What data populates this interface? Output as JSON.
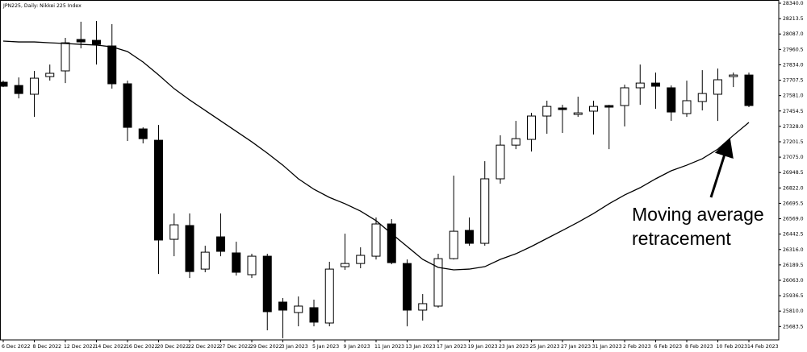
{
  "chart_data": {
    "type": "candlestick",
    "title": "JPN225, Daily: Nikkei 225 Index",
    "categories": [
      "6 Dec 2022",
      null,
      "8 Dec 2022",
      null,
      "12 Dec 2022",
      null,
      "14 Dec 2022",
      null,
      "16 Dec 2022",
      null,
      "20 Dec 2022",
      null,
      "22 Dec 2022",
      null,
      "27 Dec 2022",
      null,
      "29 Dec 2022",
      null,
      "3 Jan 2023",
      null,
      "5 Jan 2023",
      null,
      "9 Jan 2023",
      null,
      "11 Jan 2023",
      null,
      "13 Jan 2023",
      null,
      "17 Jan 2023",
      null,
      "19 Jan 2023",
      null,
      "23 Jan 2023",
      null,
      "25 Jan 2023",
      null,
      "27 Jan 2023",
      null,
      "31 Jan 2023",
      null,
      "2 Feb 2023",
      null,
      "6 Feb 2023",
      null,
      "8 Feb 2023",
      null,
      "10 Feb 2023",
      null,
      "14 Feb 2023"
    ],
    "open": [
      27691,
      27664,
      27592,
      27737,
      27784,
      28042,
      28035,
      27989,
      27678,
      27307,
      27214,
      26400,
      26513,
      26155,
      26420,
      26288,
      26109,
      26261,
      25884,
      25798,
      25838,
      25712,
      26175,
      26201,
      26261,
      26526,
      26201,
      25818,
      25851,
      26241,
      26473,
      26367,
      26897,
      27174,
      27221,
      27413,
      27479,
      27426,
      27453,
      27499,
      27499,
      27645,
      27684,
      27645,
      27433,
      27532,
      27592,
      27737,
      27750
    ],
    "high": [
      27704,
      27730,
      27784,
      27836,
      28055,
      28188,
      28194,
      28168,
      27704,
      27320,
      27340,
      26612,
      26612,
      26347,
      26612,
      26380,
      26281,
      26281,
      25917,
      25930,
      25904,
      26215,
      26446,
      26334,
      26579,
      26566,
      26234,
      25950,
      26281,
      26923,
      26579,
      27042,
      27254,
      27373,
      27439,
      27539,
      27505,
      27572,
      27539,
      27505,
      27671,
      27836,
      27770,
      27664,
      27704,
      27790,
      27803,
      27770,
      27770
    ],
    "low": [
      27651,
      27558,
      27406,
      27704,
      27684,
      27969,
      27836,
      27638,
      27208,
      27188,
      26115,
      26261,
      26082,
      26129,
      26261,
      26102,
      26082,
      25652,
      25586,
      25685,
      25685,
      25685,
      26149,
      26162,
      26234,
      26195,
      25685,
      25732,
      25838,
      26234,
      26347,
      26347,
      26857,
      27141,
      27121,
      27267,
      27274,
      27406,
      27261,
      27141,
      27327,
      27505,
      27472,
      27373,
      27406,
      27459,
      27373,
      27651,
      27486
    ],
    "close": [
      27658,
      27598,
      27724,
      27764,
      28015,
      28022,
      28002,
      27678,
      27320,
      27227,
      26394,
      26519,
      26135,
      26294,
      26301,
      26129,
      26261,
      25805,
      25818,
      25851,
      25719,
      26155,
      26201,
      26268,
      26526,
      26208,
      25818,
      25871,
      26241,
      26466,
      26367,
      26897,
      27174,
      27227,
      27413,
      27492,
      27466,
      27439,
      27492,
      27486,
      27645,
      27684,
      27658,
      27446,
      27539,
      27598,
      27711,
      27750,
      27499
    ],
    "up_color": "#ffffff",
    "down_color": "#000000",
    "moving_average": {
      "color": "#000000",
      "values": [
        28029,
        28022,
        28022,
        28015,
        28009,
        28002,
        27996,
        27982,
        27943,
        27857,
        27751,
        27638,
        27545,
        27459,
        27373,
        27287,
        27201,
        27108,
        27009,
        26897,
        26811,
        26744,
        26692,
        26632,
        26553,
        26446,
        26341,
        26235,
        26169,
        26149,
        26155,
        26175,
        26235,
        26281,
        26341,
        26407,
        26473,
        26540,
        26612,
        26692,
        26764,
        26824,
        26897,
        26963,
        27009,
        27062,
        27141,
        27254,
        27360
      ]
    },
    "ylim": [
      25573,
      28366.5
    ],
    "yticks": [
      {
        "value": 28340,
        "label": "28340.0"
      },
      28213.5,
      {
        "value": 28087,
        "label": "28087.0"
      },
      27960.5,
      {
        "value": 27834,
        "label": "27834.0"
      },
      27707.5,
      {
        "value": 27581,
        "label": "27581.0"
      },
      27454.5,
      {
        "value": 27328,
        "label": "27328.0"
      },
      27201.5,
      {
        "value": 27075,
        "label": "27075.0"
      },
      26948.5,
      {
        "value": 26822,
        "label": "26822.0"
      },
      26695.5,
      {
        "value": 26569,
        "label": "26569.0"
      },
      26442.5,
      {
        "value": 26316,
        "label": "26316.0"
      },
      26189.5,
      {
        "value": 26063,
        "label": "26063.0"
      },
      25936.5,
      {
        "value": 25810,
        "label": "25810.0"
      },
      25683.5
    ],
    "grid": false,
    "annotation": [
      "Moving average",
      "retracement"
    ]
  }
}
